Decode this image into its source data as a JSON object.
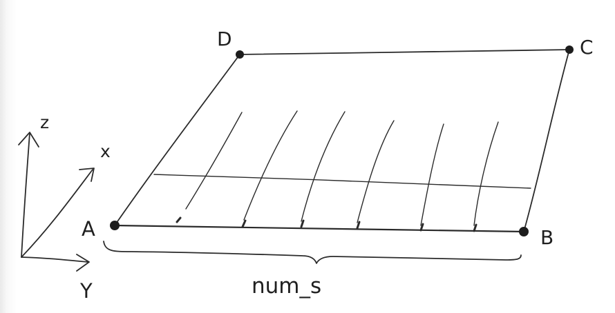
{
  "diagram": {
    "corners": {
      "a": "A",
      "b": "B",
      "c": "C",
      "d": "D"
    },
    "axes": {
      "x": "x",
      "y": "Y",
      "z": "z"
    },
    "brace_label": "num_s",
    "colors": {
      "ink": "#2a2a2a",
      "paper": "#ffffff"
    }
  }
}
